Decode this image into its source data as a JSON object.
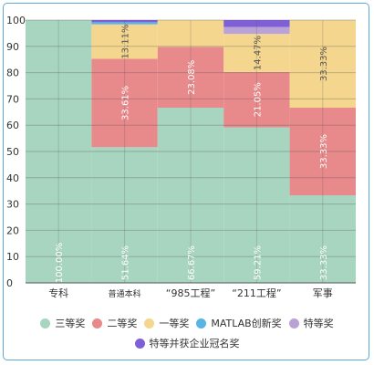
{
  "chart_data": {
    "type": "bar",
    "stacked": true,
    "categories": [
      "专科",
      "普通本科",
      "“985工程”",
      "“211工程”",
      "军事"
    ],
    "series": [
      {
        "name": "三等奖",
        "color": "#a8d5bf",
        "values": [
          100.0,
          51.64,
          66.67,
          59.21,
          33.33
        ]
      },
      {
        "name": "二等奖",
        "color": "#e8898b",
        "values": [
          0,
          33.61,
          23.08,
          21.05,
          33.33
        ]
      },
      {
        "name": "一等奖",
        "color": "#f5d68e",
        "values": [
          0,
          13.11,
          10.25,
          14.47,
          33.34
        ]
      },
      {
        "name": "MATLAB创新奖",
        "color": "#5ab4e5",
        "values": [
          0,
          0.82,
          0,
          0,
          0
        ]
      },
      {
        "name": "特等奖",
        "color": "#b9a3d6",
        "values": [
          0,
          0,
          0,
          2.64,
          0
        ]
      },
      {
        "name": "特等并获企业冠名奖",
        "color": "#7e5fd6",
        "values": [
          0,
          0.82,
          0,
          2.63,
          0
        ]
      }
    ],
    "data_labels": [
      {
        "series": 0,
        "category": 0,
        "text": "100.00%"
      },
      {
        "series": 0,
        "category": 1,
        "text": "51.64%"
      },
      {
        "series": 0,
        "category": 2,
        "text": "66.67%"
      },
      {
        "series": 0,
        "category": 3,
        "text": "59.21%"
      },
      {
        "series": 0,
        "category": 4,
        "text": "33.33%"
      },
      {
        "series": 1,
        "category": 1,
        "text": "33.61%"
      },
      {
        "series": 1,
        "category": 2,
        "text": "23.08%"
      },
      {
        "series": 1,
        "category": 3,
        "text": "21.05%"
      },
      {
        "series": 1,
        "category": 4,
        "text": "33.33%"
      },
      {
        "series": 2,
        "category": 1,
        "text": "13.11%"
      },
      {
        "series": 2,
        "category": 3,
        "text": "14.47%"
      },
      {
        "series": 2,
        "category": 4,
        "text": "33.33%"
      }
    ],
    "ylim": [
      0,
      100
    ],
    "yticks": [
      0,
      10,
      20,
      30,
      40,
      50,
      60,
      70,
      80,
      90,
      100
    ],
    "grid": true,
    "legend_position": "bottom"
  }
}
